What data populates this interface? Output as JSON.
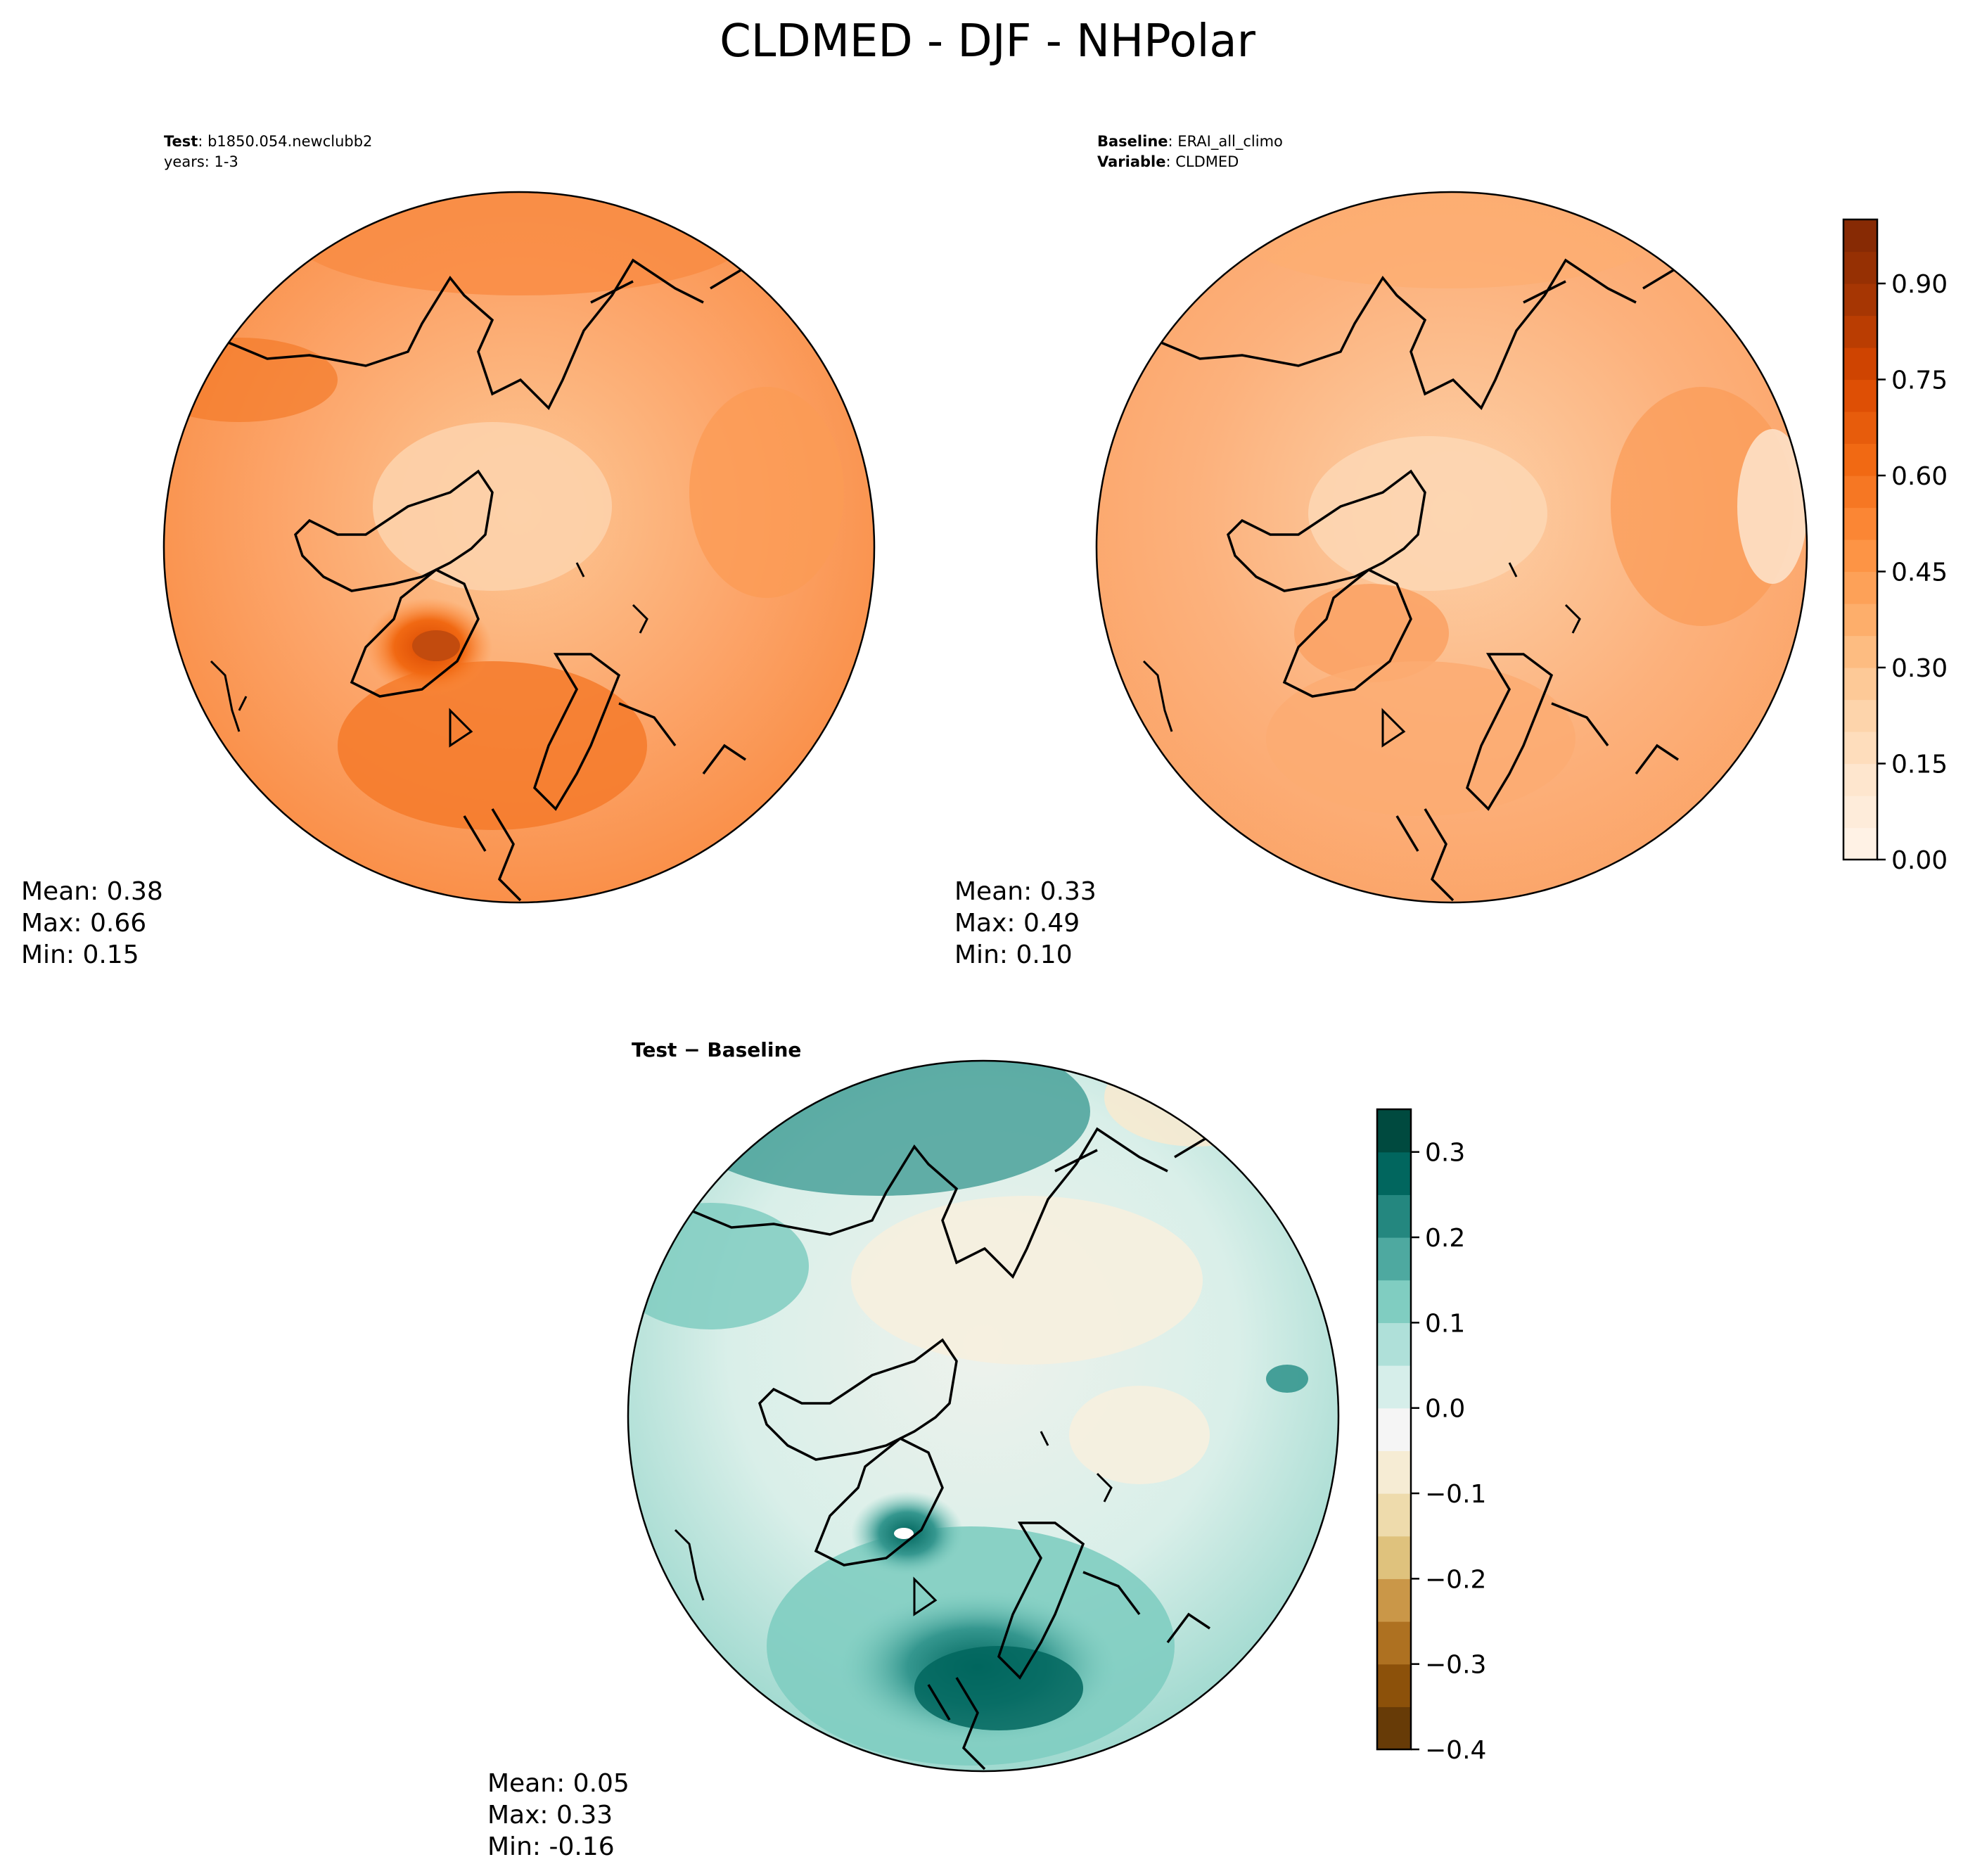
{
  "title": "CLDMED - DJF - NHPolar",
  "colors": {
    "ocean_outline": "#000000",
    "orange_scale": [
      "#fff5eb",
      "#fee6ce",
      "#fdd0a2",
      "#fdae6b",
      "#fd8d3c",
      "#f16913",
      "#d94801",
      "#a63603",
      "#7f2704"
    ],
    "diff_scale": [
      "#543005",
      "#8c510a",
      "#bf812d",
      "#dfc27d",
      "#f6e8c3",
      "#f5f5f5",
      "#c7eae5",
      "#80cdc1",
      "#35978f",
      "#01665e",
      "#003c30"
    ]
  },
  "chart_data": [
    {
      "type": "heatmap",
      "name": "test",
      "projection": "north-polar-stereographic",
      "header": [
        {
          "bold": "Test",
          "text": ": b1850.054.newclubb2"
        },
        {
          "bold": "",
          "text": "years: 1-3"
        }
      ],
      "stats": {
        "mean_label": "Mean:  0.38",
        "max_label": "Max:  0.66",
        "min_label": "Min:  0.15"
      },
      "mean": 0.38,
      "max": 0.66,
      "min": 0.15,
      "colormap": "Oranges"
    },
    {
      "type": "heatmap",
      "name": "baseline",
      "projection": "north-polar-stereographic",
      "header": [
        {
          "bold": "Baseline",
          "text": ": ERAI_all_climo"
        },
        {
          "bold": "Variable",
          "text": ": CLDMED"
        }
      ],
      "stats": {
        "mean_label": "Mean:  0.33",
        "max_label": "Max:  0.49",
        "min_label": "Min:  0.10"
      },
      "mean": 0.33,
      "max": 0.49,
      "min": 0.1,
      "colormap": "Oranges",
      "colorbar": {
        "range": [
          0.0,
          1.0
        ],
        "levels": 20,
        "ticks": [
          "0.00",
          "0.15",
          "0.30",
          "0.45",
          "0.60",
          "0.75",
          "0.90"
        ],
        "tick_values": [
          0.0,
          0.15,
          0.3,
          0.45,
          0.6,
          0.75,
          0.9
        ]
      }
    },
    {
      "type": "heatmap",
      "name": "difference",
      "projection": "north-polar-stereographic",
      "header": [
        {
          "bold": "Test − Baseline",
          "text": ""
        }
      ],
      "stats": {
        "mean_label": "Mean:  0.05",
        "max_label": "Max:  0.33",
        "min_label": "Min: -0.16"
      },
      "mean": 0.05,
      "max": 0.33,
      "min": -0.16,
      "colormap": "BrBG",
      "colorbar": {
        "range": [
          -0.4,
          0.35
        ],
        "levels": 15,
        "ticks": [
          "0.3",
          "0.2",
          "0.1",
          "0.0",
          "−0.1",
          "−0.2",
          "−0.3",
          "−0.4"
        ],
        "tick_values": [
          0.3,
          0.2,
          0.1,
          0.0,
          -0.1,
          -0.2,
          -0.3,
          -0.4
        ]
      }
    }
  ]
}
